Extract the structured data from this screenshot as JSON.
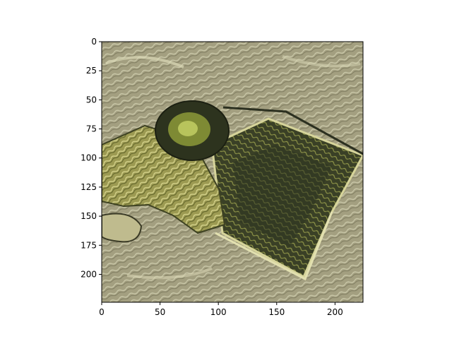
{
  "figure": {
    "background": "#ffffff",
    "image": {
      "description_colors": {
        "base": "#9e9a7c",
        "grass": "#a8a470",
        "highlight": "#d4d39a",
        "shadow": "#2f3420",
        "accent_green": "#6f7a2c"
      },
      "extent_x": [
        0,
        224
      ],
      "extent_y": [
        0,
        224
      ]
    },
    "x_axis": {
      "ticks": [
        0,
        50,
        100,
        150,
        200
      ],
      "labels": [
        "0",
        "50",
        "100",
        "150",
        "200"
      ]
    },
    "y_axis": {
      "ticks": [
        0,
        25,
        50,
        75,
        100,
        125,
        150,
        175,
        200
      ],
      "labels": [
        "0",
        "25",
        "50",
        "75",
        "100",
        "125",
        "150",
        "175",
        "200"
      ]
    }
  }
}
